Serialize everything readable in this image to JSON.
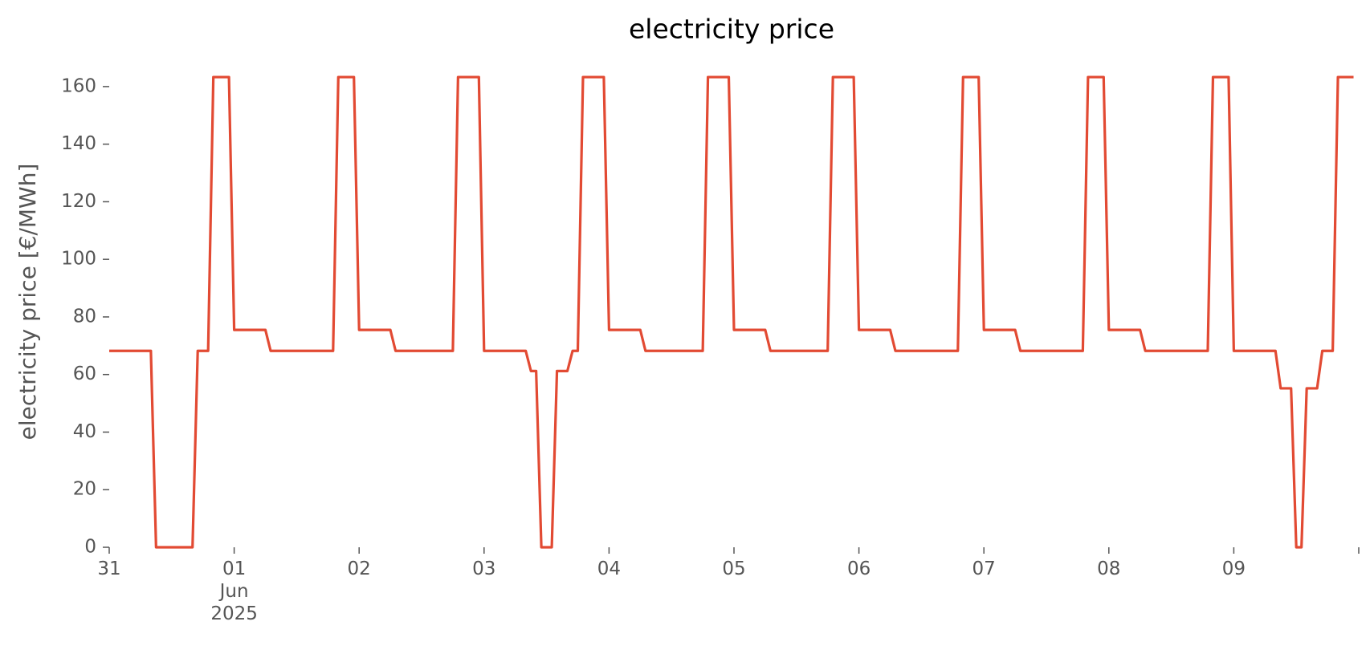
{
  "chart_data": {
    "type": "line",
    "title": "electricity price",
    "ylabel": "electricity price [€/MWh]",
    "ylim": [
      0,
      170
    ],
    "yticks": [
      0,
      20,
      40,
      60,
      80,
      100,
      120,
      140,
      160
    ],
    "xlim": [
      "2025-05-31 00:00",
      "2025-06-10 00:00"
    ],
    "xticks": [
      {
        "value": "2025-05-31 00:00",
        "label": "31"
      },
      {
        "value": "2025-06-01 00:00",
        "label": "01\nJun\n2025"
      },
      {
        "value": "2025-06-02 00:00",
        "label": "02"
      },
      {
        "value": "2025-06-03 00:00",
        "label": "03"
      },
      {
        "value": "2025-06-04 00:00",
        "label": "04"
      },
      {
        "value": "2025-06-05 00:00",
        "label": "05"
      },
      {
        "value": "2025-06-06 00:00",
        "label": "06"
      },
      {
        "value": "2025-06-07 00:00",
        "label": "07"
      },
      {
        "value": "2025-06-08 00:00",
        "label": "08"
      },
      {
        "value": "2025-06-09 00:00",
        "label": "09"
      },
      {
        "value": "2025-06-10 00:00"
      }
    ],
    "grid": false,
    "x": [
      "2025-05-31 00:00",
      "2025-05-31 01:00",
      "2025-05-31 02:00",
      "2025-05-31 03:00",
      "2025-05-31 04:00",
      "2025-05-31 05:00",
      "2025-05-31 06:00",
      "2025-05-31 07:00",
      "2025-05-31 08:00",
      "2025-05-31 09:00",
      "2025-05-31 10:00",
      "2025-05-31 11:00",
      "2025-05-31 12:00",
      "2025-05-31 13:00",
      "2025-05-31 14:00",
      "2025-05-31 15:00",
      "2025-05-31 16:00",
      "2025-05-31 17:00",
      "2025-05-31 18:00",
      "2025-05-31 19:00",
      "2025-05-31 20:00",
      "2025-05-31 21:00",
      "2025-05-31 22:00",
      "2025-05-31 23:00",
      "2025-06-01 00:00",
      "2025-06-01 01:00",
      "2025-06-01 02:00",
      "2025-06-01 03:00",
      "2025-06-01 04:00",
      "2025-06-01 05:00",
      "2025-06-01 06:00",
      "2025-06-01 07:00",
      "2025-06-01 08:00",
      "2025-06-01 09:00",
      "2025-06-01 10:00",
      "2025-06-01 11:00",
      "2025-06-01 12:00",
      "2025-06-01 13:00",
      "2025-06-01 14:00",
      "2025-06-01 15:00",
      "2025-06-01 16:00",
      "2025-06-01 17:00",
      "2025-06-01 18:00",
      "2025-06-01 19:00",
      "2025-06-01 20:00",
      "2025-06-01 21:00",
      "2025-06-01 22:00",
      "2025-06-01 23:00",
      "2025-06-02 00:00",
      "2025-06-02 01:00",
      "2025-06-02 02:00",
      "2025-06-02 03:00",
      "2025-06-02 04:00",
      "2025-06-02 05:00",
      "2025-06-02 06:00",
      "2025-06-02 07:00",
      "2025-06-02 08:00",
      "2025-06-02 09:00",
      "2025-06-02 10:00",
      "2025-06-02 11:00",
      "2025-06-02 12:00",
      "2025-06-02 13:00",
      "2025-06-02 14:00",
      "2025-06-02 15:00",
      "2025-06-02 16:00",
      "2025-06-02 17:00",
      "2025-06-02 18:00",
      "2025-06-02 19:00",
      "2025-06-02 20:00",
      "2025-06-02 21:00",
      "2025-06-02 22:00",
      "2025-06-02 23:00",
      "2025-06-03 00:00",
      "2025-06-03 01:00",
      "2025-06-03 02:00",
      "2025-06-03 03:00",
      "2025-06-03 04:00",
      "2025-06-03 05:00",
      "2025-06-03 06:00",
      "2025-06-03 07:00",
      "2025-06-03 08:00",
      "2025-06-03 09:00",
      "2025-06-03 10:00",
      "2025-06-03 11:00",
      "2025-06-03 12:00",
      "2025-06-03 13:00",
      "2025-06-03 14:00",
      "2025-06-03 15:00",
      "2025-06-03 16:00",
      "2025-06-03 17:00",
      "2025-06-03 18:00",
      "2025-06-03 19:00",
      "2025-06-03 20:00",
      "2025-06-03 21:00",
      "2025-06-03 22:00",
      "2025-06-03 23:00",
      "2025-06-04 00:00",
      "2025-06-04 01:00",
      "2025-06-04 02:00",
      "2025-06-04 03:00",
      "2025-06-04 04:00",
      "2025-06-04 05:00",
      "2025-06-04 06:00",
      "2025-06-04 07:00",
      "2025-06-04 08:00",
      "2025-06-04 09:00",
      "2025-06-04 10:00",
      "2025-06-04 11:00",
      "2025-06-04 12:00",
      "2025-06-04 13:00",
      "2025-06-04 14:00",
      "2025-06-04 15:00",
      "2025-06-04 16:00",
      "2025-06-04 17:00",
      "2025-06-04 18:00",
      "2025-06-04 19:00",
      "2025-06-04 20:00",
      "2025-06-04 21:00",
      "2025-06-04 22:00",
      "2025-06-04 23:00",
      "2025-06-05 00:00",
      "2025-06-05 01:00",
      "2025-06-05 02:00",
      "2025-06-05 03:00",
      "2025-06-05 04:00",
      "2025-06-05 05:00",
      "2025-06-05 06:00",
      "2025-06-05 07:00",
      "2025-06-05 08:00",
      "2025-06-05 09:00",
      "2025-06-05 10:00",
      "2025-06-05 11:00",
      "2025-06-05 12:00",
      "2025-06-05 13:00",
      "2025-06-05 14:00",
      "2025-06-05 15:00",
      "2025-06-05 16:00",
      "2025-06-05 17:00",
      "2025-06-05 18:00",
      "2025-06-05 19:00",
      "2025-06-05 20:00",
      "2025-06-05 21:00",
      "2025-06-05 22:00",
      "2025-06-05 23:00",
      "2025-06-06 00:00",
      "2025-06-06 01:00",
      "2025-06-06 02:00",
      "2025-06-06 03:00",
      "2025-06-06 04:00",
      "2025-06-06 05:00",
      "2025-06-06 06:00",
      "2025-06-06 07:00",
      "2025-06-06 08:00",
      "2025-06-06 09:00",
      "2025-06-06 10:00",
      "2025-06-06 11:00",
      "2025-06-06 12:00",
      "2025-06-06 13:00",
      "2025-06-06 14:00",
      "2025-06-06 15:00",
      "2025-06-06 16:00",
      "2025-06-06 17:00",
      "2025-06-06 18:00",
      "2025-06-06 19:00",
      "2025-06-06 20:00",
      "2025-06-06 21:00",
      "2025-06-06 22:00",
      "2025-06-06 23:00",
      "2025-06-07 00:00",
      "2025-06-07 01:00",
      "2025-06-07 02:00",
      "2025-06-07 03:00",
      "2025-06-07 04:00",
      "2025-06-07 05:00",
      "2025-06-07 06:00",
      "2025-06-07 07:00",
      "2025-06-07 08:00",
      "2025-06-07 09:00",
      "2025-06-07 10:00",
      "2025-06-07 11:00",
      "2025-06-07 12:00",
      "2025-06-07 13:00",
      "2025-06-07 14:00",
      "2025-06-07 15:00",
      "2025-06-07 16:00",
      "2025-06-07 17:00",
      "2025-06-07 18:00",
      "2025-06-07 19:00",
      "2025-06-07 20:00",
      "2025-06-07 21:00",
      "2025-06-07 22:00",
      "2025-06-07 23:00",
      "2025-06-08 00:00",
      "2025-06-08 01:00",
      "2025-06-08 02:00",
      "2025-06-08 03:00",
      "2025-06-08 04:00",
      "2025-06-08 05:00",
      "2025-06-08 06:00",
      "2025-06-08 07:00",
      "2025-06-08 08:00",
      "2025-06-08 09:00",
      "2025-06-08 10:00",
      "2025-06-08 11:00",
      "2025-06-08 12:00",
      "2025-06-08 13:00",
      "2025-06-08 14:00",
      "2025-06-08 15:00",
      "2025-06-08 16:00",
      "2025-06-08 17:00",
      "2025-06-08 18:00",
      "2025-06-08 19:00",
      "2025-06-08 20:00",
      "2025-06-08 21:00",
      "2025-06-08 22:00",
      "2025-06-08 23:00",
      "2025-06-09 00:00",
      "2025-06-09 01:00",
      "2025-06-09 02:00",
      "2025-06-09 03:00",
      "2025-06-09 04:00",
      "2025-06-09 05:00",
      "2025-06-09 06:00",
      "2025-06-09 07:00",
      "2025-06-09 08:00",
      "2025-06-09 09:00",
      "2025-06-09 10:00",
      "2025-06-09 11:00",
      "2025-06-09 12:00",
      "2025-06-09 13:00",
      "2025-06-09 14:00",
      "2025-06-09 15:00",
      "2025-06-09 16:00",
      "2025-06-09 17:00",
      "2025-06-09 18:00",
      "2025-06-09 19:00",
      "2025-06-09 20:00",
      "2025-06-09 21:00",
      "2025-06-09 22:00",
      "2025-06-09 23:00"
    ],
    "series": [
      {
        "color": "#e24a33",
        "values": [
          68.2,
          68.2,
          68.2,
          68.2,
          68.2,
          68.2,
          68.2,
          68.2,
          68.2,
          0,
          0,
          0,
          0,
          0,
          0,
          0,
          0,
          68.2,
          68.2,
          68.2,
          163.3,
          163.3,
          163.3,
          163.3,
          75.5,
          75.5,
          75.5,
          75.5,
          75.5,
          75.5,
          75.5,
          68.2,
          68.2,
          68.2,
          68.2,
          68.2,
          68.2,
          68.2,
          68.2,
          68.2,
          68.2,
          68.2,
          68.2,
          68.2,
          163.3,
          163.3,
          163.3,
          163.3,
          75.5,
          75.5,
          75.5,
          75.5,
          75.5,
          75.5,
          75.5,
          68.2,
          68.2,
          68.2,
          68.2,
          68.2,
          68.2,
          68.2,
          68.2,
          68.2,
          68.2,
          68.2,
          68.2,
          163.3,
          163.3,
          163.3,
          163.3,
          163.3,
          68.2,
          68.2,
          68.2,
          68.2,
          68.2,
          68.2,
          68.2,
          68.2,
          68.2,
          61.2,
          61.2,
          0,
          0,
          0,
          61.2,
          61.2,
          61.2,
          68.2,
          68.2,
          163.3,
          163.3,
          163.3,
          163.3,
          163.3,
          75.5,
          75.5,
          75.5,
          75.5,
          75.5,
          75.5,
          75.5,
          68.2,
          68.2,
          68.2,
          68.2,
          68.2,
          68.2,
          68.2,
          68.2,
          68.2,
          68.2,
          68.2,
          68.2,
          163.3,
          163.3,
          163.3,
          163.3,
          163.3,
          75.5,
          75.5,
          75.5,
          75.5,
          75.5,
          75.5,
          75.5,
          68.2,
          68.2,
          68.2,
          68.2,
          68.2,
          68.2,
          68.2,
          68.2,
          68.2,
          68.2,
          68.2,
          68.2,
          163.3,
          163.3,
          163.3,
          163.3,
          163.3,
          75.5,
          75.5,
          75.5,
          75.5,
          75.5,
          75.5,
          75.5,
          68.2,
          68.2,
          68.2,
          68.2,
          68.2,
          68.2,
          68.2,
          68.2,
          68.2,
          68.2,
          68.2,
          68.2,
          68.2,
          163.3,
          163.3,
          163.3,
          163.3,
          75.5,
          75.5,
          75.5,
          75.5,
          75.5,
          75.5,
          75.5,
          68.2,
          68.2,
          68.2,
          68.2,
          68.2,
          68.2,
          68.2,
          68.2,
          68.2,
          68.2,
          68.2,
          68.2,
          68.2,
          163.3,
          163.3,
          163.3,
          163.3,
          75.5,
          75.5,
          75.5,
          75.5,
          75.5,
          75.5,
          75.5,
          68.2,
          68.2,
          68.2,
          68.2,
          68.2,
          68.2,
          68.2,
          68.2,
          68.2,
          68.2,
          68.2,
          68.2,
          68.2,
          163.3,
          163.3,
          163.3,
          163.3,
          68.2,
          68.2,
          68.2,
          68.2,
          68.2,
          68.2,
          68.2,
          68.2,
          68.2,
          55.2,
          55.2,
          55.2,
          0,
          0,
          55.2,
          55.2,
          55.2,
          68.2,
          68.2,
          68.2,
          163.3,
          163.3,
          163.3,
          163.3
        ]
      }
    ]
  }
}
